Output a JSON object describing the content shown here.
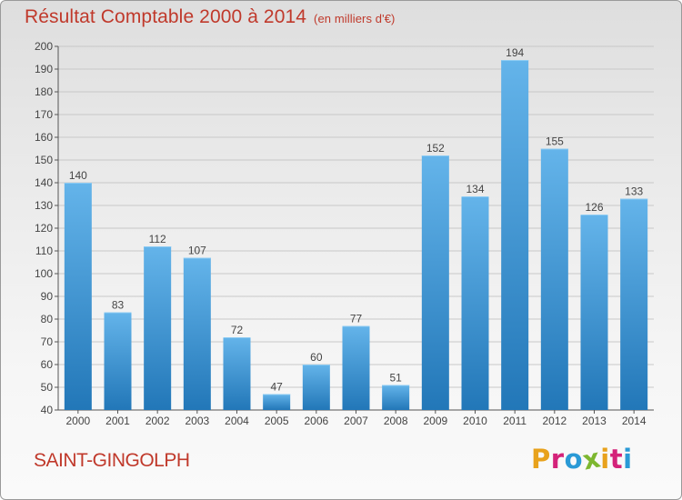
{
  "header": {
    "title": "Résultat Comptable 2000 à 2014",
    "subtitle": "(en milliers d'€)"
  },
  "footer": {
    "commune": "SAINT-GINGOLPH",
    "brand": "Proxiti",
    "brand_colors": [
      "#e8a21c",
      "#d4237a",
      "#2a9ad6",
      "#7db730",
      "#e8a21c",
      "#d4237a",
      "#2a9ad6"
    ]
  },
  "colors": {
    "title": "#c0392b",
    "bar_light": "#64b4ea",
    "bar_dark": "#2277b8",
    "grid": "#c8c8c8"
  },
  "chart_data": {
    "type": "bar",
    "categories": [
      "2000",
      "2001",
      "2002",
      "2003",
      "2004",
      "2005",
      "2006",
      "2007",
      "2008",
      "2009",
      "2010",
      "2011",
      "2012",
      "2013",
      "2014"
    ],
    "values": [
      140,
      83,
      112,
      107,
      72,
      47,
      60,
      77,
      51,
      152,
      134,
      194,
      155,
      126,
      133
    ],
    "ylim": [
      40,
      200
    ],
    "yticks": [
      40,
      50,
      60,
      70,
      80,
      90,
      100,
      110,
      120,
      130,
      140,
      150,
      160,
      170,
      180,
      190,
      200
    ],
    "grid": true,
    "show_value_labels": true
  }
}
